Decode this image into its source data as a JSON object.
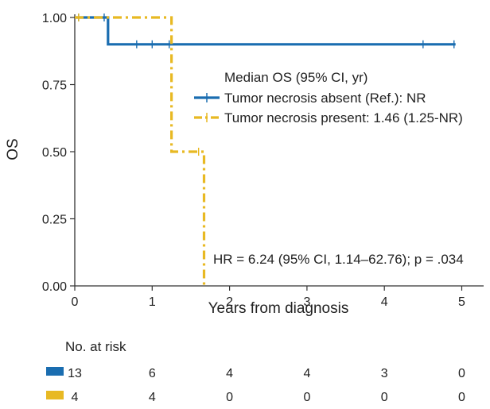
{
  "chart_data": {
    "type": "line",
    "subtype": "kaplan-meier",
    "xlabel": "Years from diagnosis",
    "ylabel": "OS",
    "xlim": [
      0,
      5.3
    ],
    "ylim": [
      0,
      1.0
    ],
    "x_ticks": [
      0,
      1,
      2,
      3,
      4,
      5
    ],
    "x_tick_labels": [
      "0",
      "1",
      "2",
      "3",
      "4",
      "5"
    ],
    "y_ticks": [
      0,
      0.25,
      0.5,
      0.75,
      1.0
    ],
    "y_tick_labels": [
      "0.00",
      "0.25",
      "0.50",
      "0.75",
      "1.00"
    ],
    "grid": false,
    "legend_title": "Median OS (95% CI, yr)",
    "legend_position": "center-right",
    "series": [
      {
        "name": "Tumor necrosis absent (Ref.): NR",
        "color": "#1a6db0",
        "dash": "solid",
        "steps": [
          [
            0,
            1.0
          ],
          [
            0.43,
            1.0
          ],
          [
            0.43,
            0.9
          ],
          [
            4.92,
            0.9
          ]
        ],
        "censors": [
          [
            0.05,
            1.0
          ],
          [
            0.38,
            1.0
          ],
          [
            0.8,
            0.9
          ],
          [
            1.0,
            0.9
          ],
          [
            1.22,
            0.9
          ],
          [
            4.5,
            0.9
          ],
          [
            4.9,
            0.9
          ]
        ]
      },
      {
        "name": "Tumor necrosis present: 1.46 (1.25-NR)",
        "color": "#e8b923",
        "dash": "dashdot",
        "steps": [
          [
            0,
            1.0
          ],
          [
            1.25,
            1.0
          ],
          [
            1.25,
            0.5
          ],
          [
            1.67,
            0.5
          ],
          [
            1.67,
            0.0
          ]
        ],
        "censors": [
          [
            0.05,
            1.0
          ],
          [
            1.6,
            0.5
          ]
        ]
      }
    ],
    "annotation": "HR = 6.24 (95% CI, 1.14–62.76); p = .034",
    "risk_table": {
      "title": "No. at risk",
      "times": [
        0,
        1,
        2,
        3,
        4,
        5
      ],
      "rows": [
        {
          "color": "#1a6db0",
          "values": [
            "13",
            "6",
            "4",
            "4",
            "3",
            "0"
          ]
        },
        {
          "color": "#e8b923",
          "values": [
            "4",
            "4",
            "0",
            "0",
            "0",
            "0"
          ]
        }
      ]
    }
  }
}
